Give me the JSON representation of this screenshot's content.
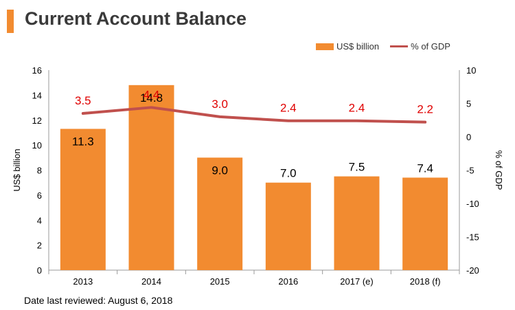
{
  "header": {
    "title": "Current Account Balance"
  },
  "footer": {
    "text": "Date last reviewed: August 6, 2018"
  },
  "colors": {
    "bar": "#F28B30",
    "line": "#C0504D",
    "pct_label": "#E00000",
    "title_accent": "#F28B30"
  },
  "chart_data": {
    "type": "bar",
    "categories": [
      "2013",
      "2014",
      "2015",
      "2016",
      "2017 (e)",
      "2018 (f)"
    ],
    "series": [
      {
        "name": "US$ billion",
        "type": "bar",
        "axis": "left",
        "values": [
          11.3,
          14.8,
          9.0,
          7.0,
          7.5,
          7.4
        ],
        "labels": [
          "11.3",
          "14.8",
          "9.0",
          "7.0",
          "7.5",
          "7.4"
        ]
      },
      {
        "name": "% of GDP",
        "type": "line",
        "axis": "right",
        "values": [
          3.5,
          4.4,
          3.0,
          2.4,
          2.4,
          2.2
        ],
        "labels": [
          "3.5",
          "4.4",
          "3.0",
          "2.4",
          "2.4",
          "2.2"
        ]
      }
    ],
    "ylabel": "US$ billion",
    "y2label": "% of GDP",
    "ylim": [
      0,
      16
    ],
    "yticks": [
      "0",
      "2",
      "4",
      "6",
      "8",
      "10",
      "12",
      "14",
      "16"
    ],
    "y2lim": [
      -20,
      10
    ],
    "y2ticks": [
      "-20",
      "-15",
      "-10",
      "-5",
      "0",
      "5",
      "10"
    ],
    "legend_position": "top-right",
    "grid": false
  }
}
